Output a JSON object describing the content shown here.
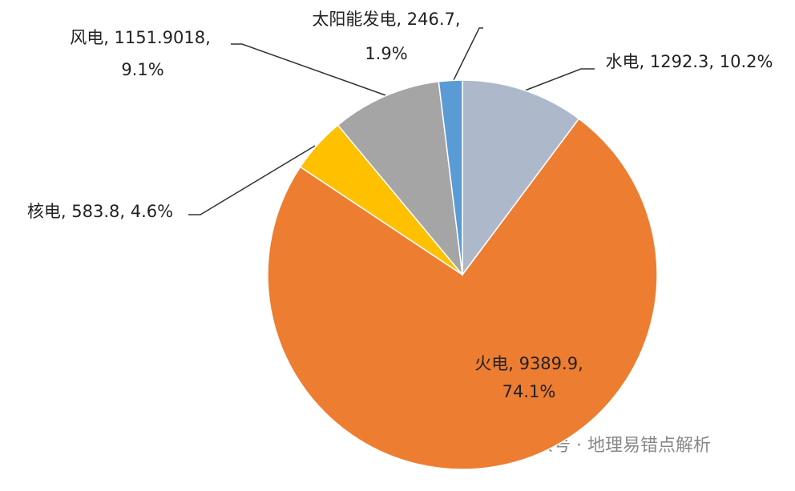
{
  "chart_data": {
    "type": "pie",
    "categories": [
      "水电",
      "火电",
      "核电",
      "风电",
      "太阳能发电"
    ],
    "values": [
      1292.3,
      9389.9,
      583.8,
      1151.9018,
      246.7
    ],
    "percents": [
      10.2,
      74.1,
      4.6,
      9.1,
      1.9
    ],
    "colors": [
      "#adb9ca",
      "#ed7d31",
      "#ffc000",
      "#a5a5a5",
      "#5b9bd5"
    ],
    "data_labels": [
      [
        "水电, 1292.3, 10.2%"
      ],
      [
        "火电, 9389.9,",
        "74.1%"
      ],
      [
        "核电, 583.8, 4.6%"
      ],
      [
        "风电, 1151.9018,",
        "9.1%"
      ],
      [
        "太阳能发电, 246.7,",
        "1.9%"
      ]
    ]
  },
  "watermark": "公众号 · 地理易错点解析"
}
